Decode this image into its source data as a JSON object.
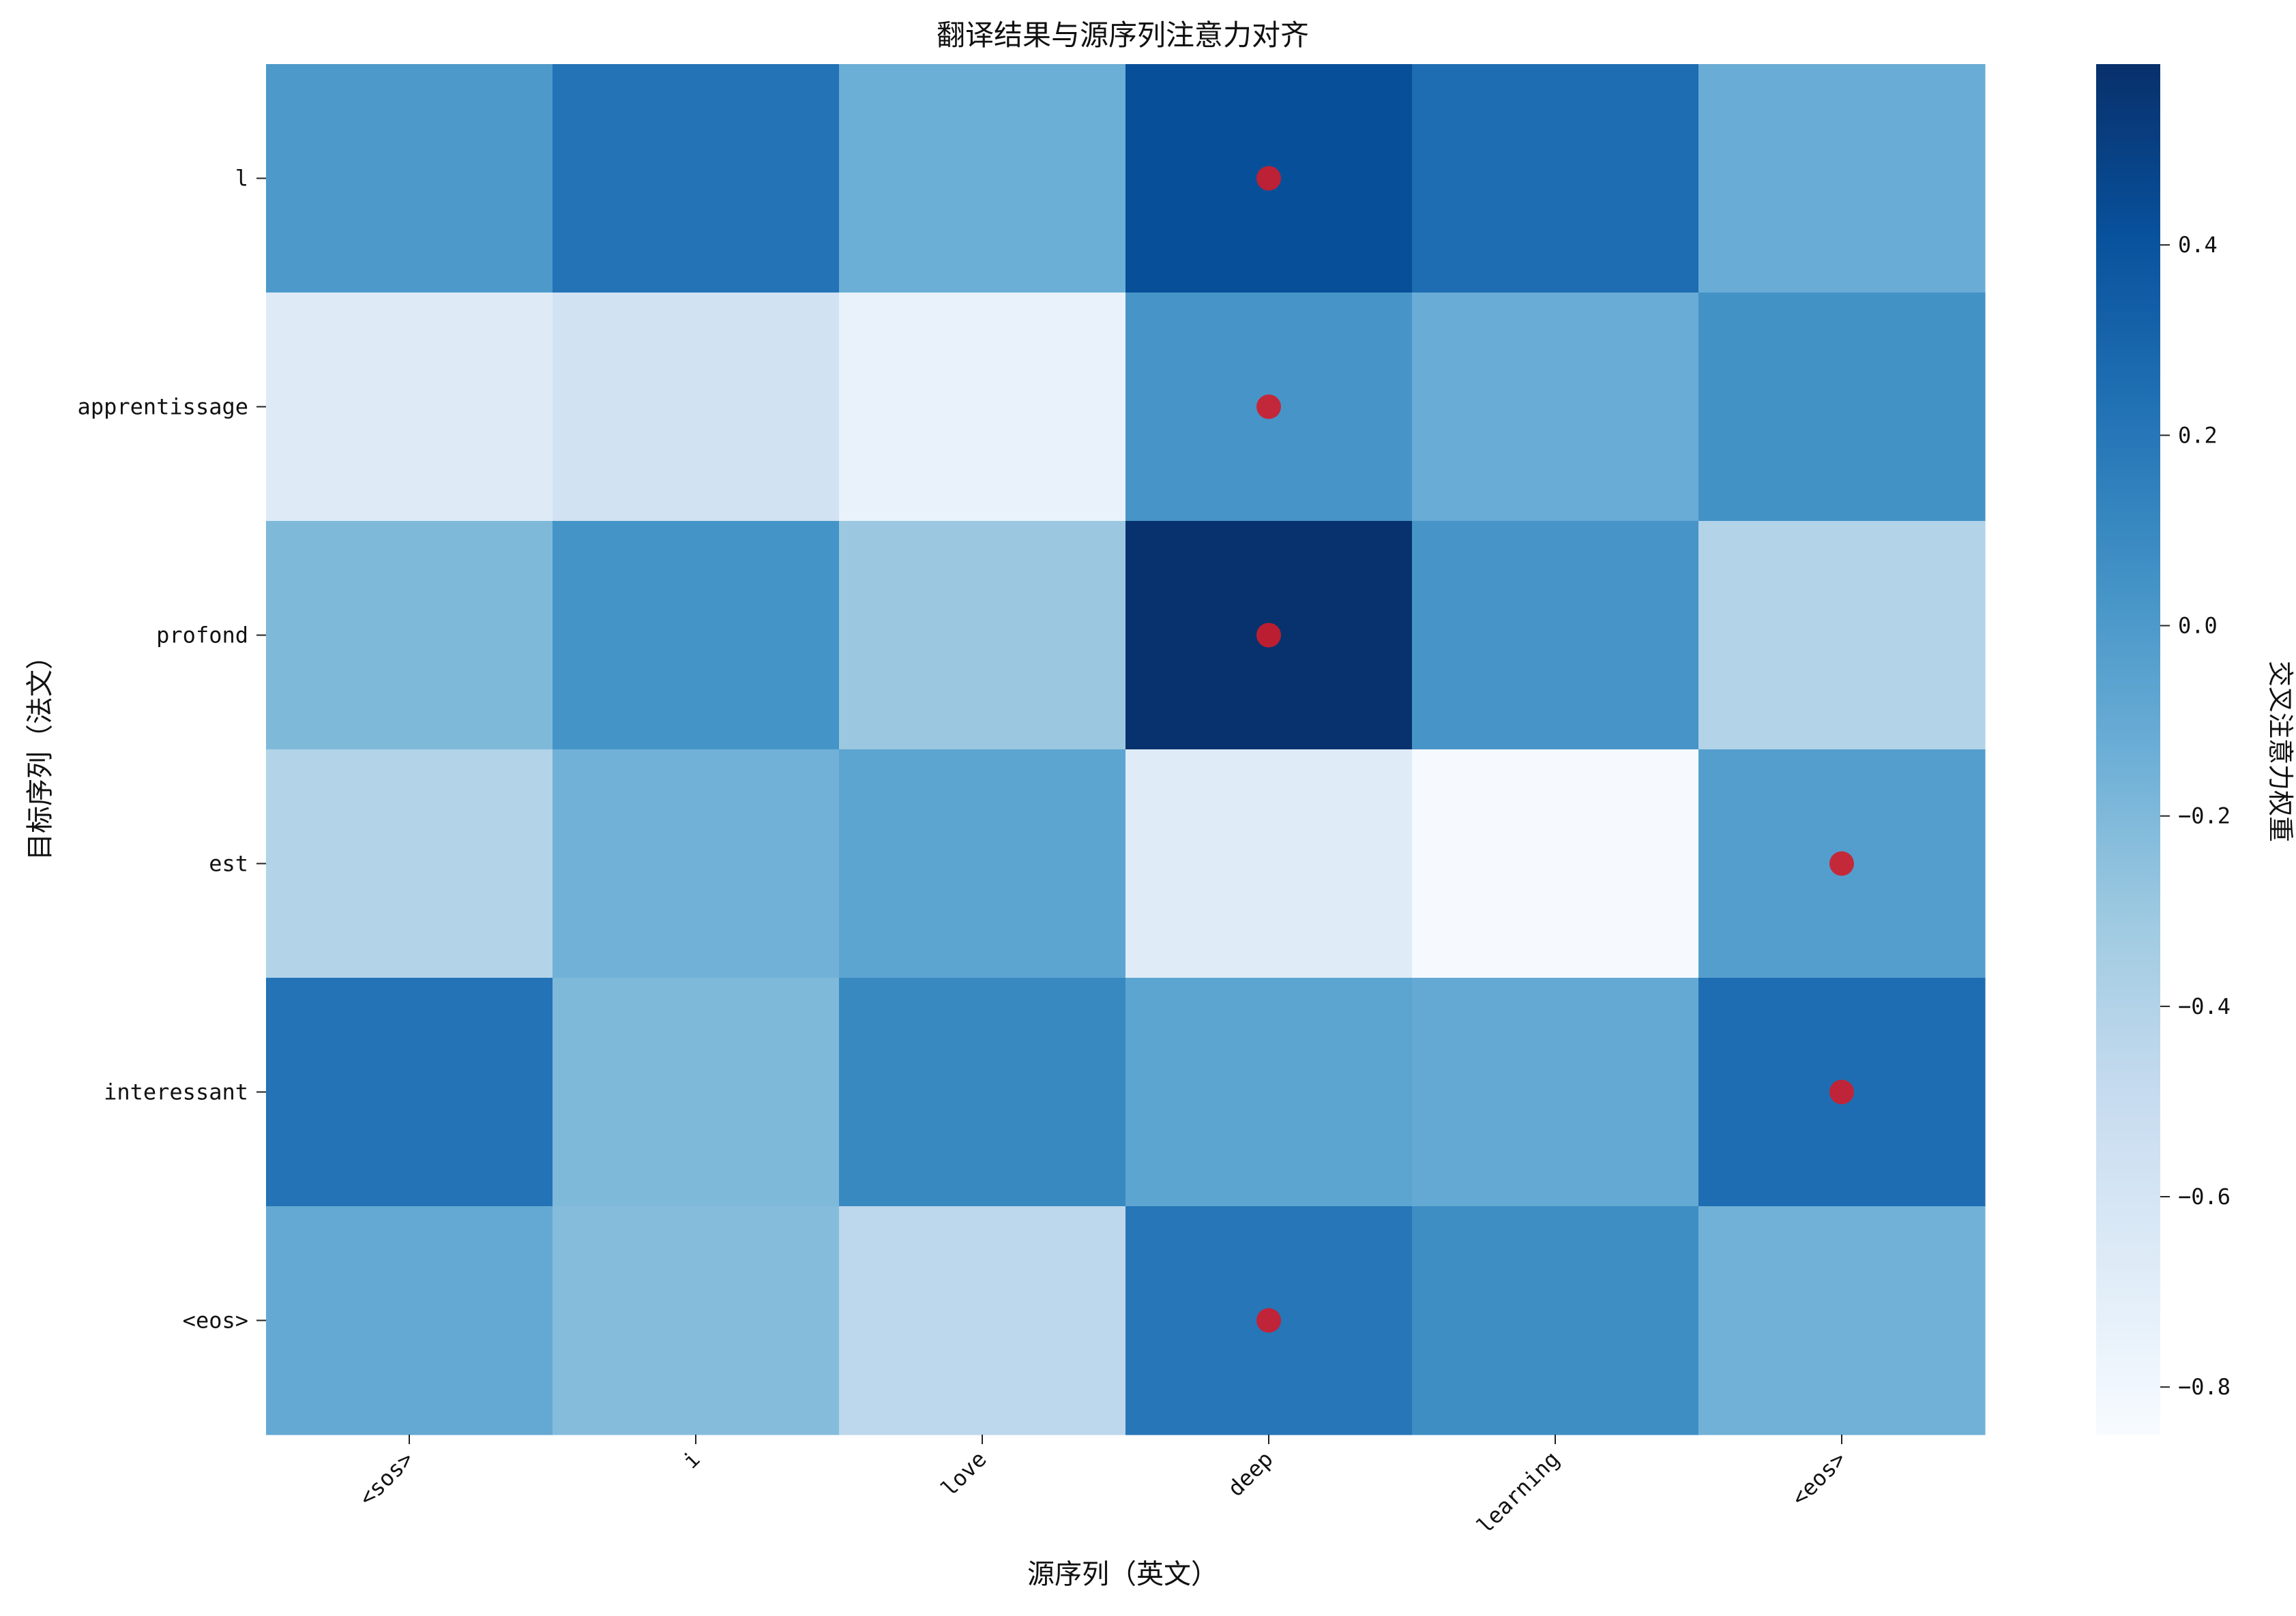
{
  "chart_data": {
    "type": "heatmap",
    "title": "翻译结果与源序列注意力对齐",
    "xlabel": "源序列（英文）",
    "ylabel": "目标序列（法文）",
    "x_categories": [
      "<sos>",
      "i",
      "love",
      "deep",
      "learning",
      "<eos>"
    ],
    "y_categories": [
      "l",
      "apprentissage",
      "profond",
      "est",
      "interessant",
      "<eos>"
    ],
    "values": [
      [
        0.0,
        0.22,
        -0.13,
        0.42,
        0.25,
        -0.12
      ],
      [
        -0.67,
        -0.57,
        -0.75,
        0.03,
        -0.12,
        0.05
      ],
      [
        -0.2,
        0.04,
        -0.3,
        0.58,
        0.03,
        -0.4
      ],
      [
        -0.4,
        -0.15,
        -0.07,
        -0.68,
        -0.84,
        -0.03
      ],
      [
        0.22,
        -0.2,
        0.1,
        -0.07,
        -0.1,
        0.25
      ],
      [
        -0.1,
        -0.22,
        -0.45,
        0.2,
        0.07,
        -0.15
      ]
    ],
    "highlights": [
      {
        "row": "l",
        "col": "deep"
      },
      {
        "row": "apprentissage",
        "col": "deep"
      },
      {
        "row": "profond",
        "col": "deep"
      },
      {
        "row": "est",
        "col": "<eos>"
      },
      {
        "row": "interessant",
        "col": "<eos>"
      },
      {
        "row": "<eos>",
        "col": "deep"
      }
    ],
    "highlight_color": "#d01c2a",
    "colormap": "Blues",
    "colorbar": {
      "label": "交叉注意力权重",
      "range": [
        -0.85,
        0.59
      ],
      "ticks": [
        "0.4",
        "0.2",
        "0.0",
        "−0.2",
        "−0.4",
        "−0.6",
        "−0.8"
      ],
      "tick_values": [
        0.4,
        0.2,
        0.0,
        -0.2,
        -0.4,
        -0.6,
        -0.8
      ]
    }
  }
}
